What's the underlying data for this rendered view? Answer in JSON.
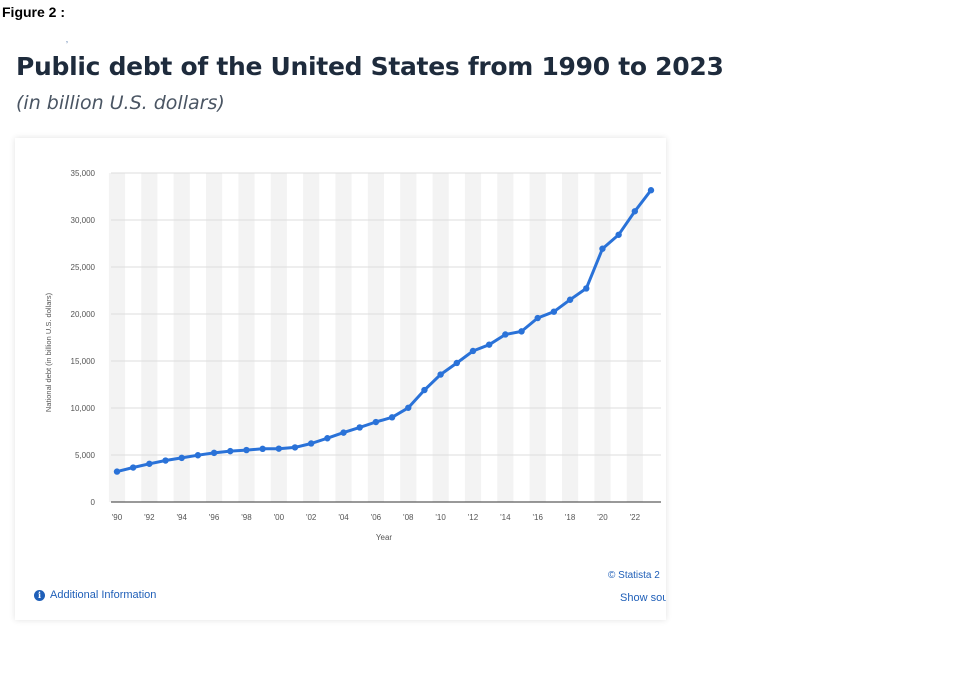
{
  "figure_label": "Figure 2 :",
  "top_mark": "ʼ",
  "chart_data": {
    "type": "line",
    "title": "Public debt of the United States from 1990 to 2023",
    "subtitle": "(in billion U.S. dollars)",
    "xlabel": "Year",
    "ylabel": "National debt (in billion U.S. dollars)",
    "ylim": [
      0,
      35000
    ],
    "yticks": [
      0,
      5000,
      10000,
      15000,
      20000,
      25000,
      30000,
      35000
    ],
    "ytick_labels": [
      "0",
      "5,000",
      "10,000",
      "15,000",
      "20,000",
      "25,000",
      "30,000",
      "35,000"
    ],
    "xticks": [
      1990,
      1992,
      1994,
      1996,
      1998,
      2000,
      2002,
      2004,
      2006,
      2008,
      2010,
      2012,
      2014,
      2016,
      2018,
      2020,
      2022
    ],
    "xtick_labels": [
      "'90",
      "'92",
      "'94",
      "'96",
      "'98",
      "'00",
      "'02",
      "'04",
      "'06",
      "'08",
      "'10",
      "'12",
      "'14",
      "'16",
      "'18",
      "'20",
      "'22"
    ],
    "grid": true,
    "color": "#2a72d8",
    "x": [
      1990,
      1991,
      1992,
      1993,
      1994,
      1995,
      1996,
      1997,
      1998,
      1999,
      2000,
      2001,
      2002,
      2003,
      2004,
      2005,
      2006,
      2007,
      2008,
      2009,
      2010,
      2011,
      2012,
      2013,
      2014,
      2015,
      2016,
      2017,
      2018,
      2019,
      2020,
      2021,
      2022,
      2023
    ],
    "values": [
      3233,
      3665,
      4065,
      4411,
      4693,
      4974,
      5225,
      5413,
      5526,
      5656,
      5674,
      5807,
      6228,
      6783,
      7379,
      7933,
      8507,
      9008,
      10025,
      11910,
      13562,
      14790,
      16066,
      16738,
      17824,
      18151,
      19573,
      20245,
      21516,
      22719,
      26945,
      28428,
      30929,
      33167
    ]
  },
  "footer": {
    "info_icon": "info-icon",
    "additional_info": "Additional Information",
    "copyright": "© Statista 2",
    "show_source": "Show sou"
  }
}
